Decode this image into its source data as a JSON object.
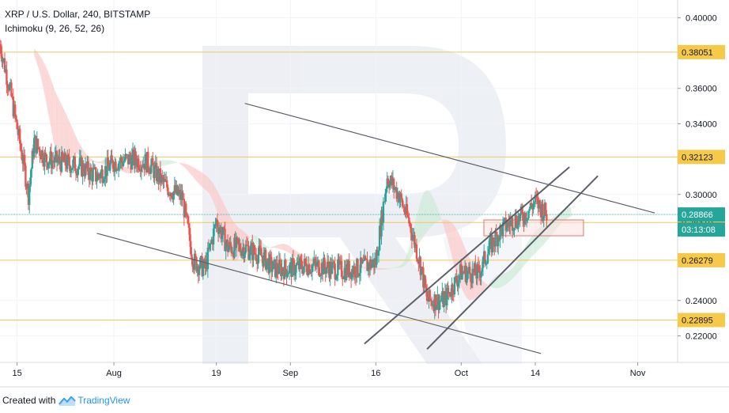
{
  "header": {
    "title": "XRP / U.S. Dollar, 240, BITSTAMP",
    "indicator": "Ichimoku (9, 26, 52, 26)"
  },
  "footer": {
    "created_with": "Created with",
    "brand": "TradingView"
  },
  "colors": {
    "up": "#26a69a",
    "down": "#ef5350",
    "hline": "#f0c75e",
    "current_line": "#4db6ac",
    "current_badge": "#26a69a",
    "countdown_badge": "#26a69a",
    "level_badge": "#f7c948",
    "trendline": "#5d606b",
    "watermark": "#dfe3ec",
    "kumo_bear": "#f9c9c9",
    "kumo_bull": "#cdebd8"
  },
  "chart_data": {
    "type": "candlestick",
    "symbol": "XRP / U.S. Dollar",
    "interval": "240",
    "exchange": "BITSTAMP",
    "indicator": "Ichimoku (9, 26, 52, 26)",
    "ylim": [
      0.205,
      0.41
    ],
    "y_ticks": [
      0.4,
      0.36,
      0.34,
      0.3,
      0.24,
      0.22
    ],
    "y_tick_labels": [
      "0.40000",
      "0.36000",
      "0.34000",
      "0.30000",
      "0.24000",
      "0.22000"
    ],
    "x_range": [
      "2019-07-12",
      "2019-11-08"
    ],
    "x_ticks": [
      {
        "date": "2019-07-15",
        "label": "15"
      },
      {
        "date": "2019-08-01",
        "label": "Aug"
      },
      {
        "date": "2019-08-19",
        "label": "19"
      },
      {
        "date": "2019-09-01",
        "label": "Sep"
      },
      {
        "date": "2019-09-16",
        "label": "16"
      },
      {
        "date": "2019-10-01",
        "label": "Oct"
      },
      {
        "date": "2019-10-14",
        "label": "14"
      },
      {
        "date": "2019-11-01",
        "label": "Nov"
      }
    ],
    "horizontal_levels": [
      {
        "value": 0.38051,
        "label": "0.38051"
      },
      {
        "value": 0.32123,
        "label": "0.32123"
      },
      {
        "value": 0.2841,
        "label": "0.28410"
      },
      {
        "value": 0.26279,
        "label": "0.26279"
      },
      {
        "value": 0.22895,
        "label": "0.22895"
      }
    ],
    "current_price": {
      "value": 0.28866,
      "label": "0.28866",
      "countdown": "03:13:08"
    },
    "close_path": [
      [
        "2019-07-12",
        0.385
      ],
      [
        "2019-07-14",
        0.355
      ],
      [
        "2019-07-16",
        0.32
      ],
      [
        "2019-07-17",
        0.3
      ],
      [
        "2019-07-18",
        0.33
      ],
      [
        "2019-07-20",
        0.32
      ],
      [
        "2019-07-23",
        0.318
      ],
      [
        "2019-07-26",
        0.316
      ],
      [
        "2019-07-29",
        0.31
      ],
      [
        "2019-08-01",
        0.318
      ],
      [
        "2019-08-04",
        0.32
      ],
      [
        "2019-08-07",
        0.318
      ],
      [
        "2019-08-10",
        0.305
      ],
      [
        "2019-08-13",
        0.298
      ],
      [
        "2019-08-15",
        0.262
      ],
      [
        "2019-08-17",
        0.258
      ],
      [
        "2019-08-19",
        0.285
      ],
      [
        "2019-08-21",
        0.27
      ],
      [
        "2019-08-24",
        0.27
      ],
      [
        "2019-08-27",
        0.265
      ],
      [
        "2019-08-29",
        0.258
      ],
      [
        "2019-09-01",
        0.258
      ],
      [
        "2019-09-04",
        0.26
      ],
      [
        "2019-09-07",
        0.259
      ],
      [
        "2019-09-10",
        0.257
      ],
      [
        "2019-09-13",
        0.258
      ],
      [
        "2019-09-16",
        0.262
      ],
      [
        "2019-09-18",
        0.31
      ],
      [
        "2019-09-20",
        0.3
      ],
      [
        "2019-09-22",
        0.283
      ],
      [
        "2019-09-24",
        0.258
      ],
      [
        "2019-09-25",
        0.24
      ],
      [
        "2019-09-28",
        0.24
      ],
      [
        "2019-10-01",
        0.256
      ],
      [
        "2019-10-04",
        0.255
      ],
      [
        "2019-10-06",
        0.27
      ],
      [
        "2019-10-08",
        0.28
      ],
      [
        "2019-10-10",
        0.285
      ],
      [
        "2019-10-12",
        0.288
      ],
      [
        "2019-10-14",
        0.296
      ],
      [
        "2019-10-16",
        0.2887
      ]
    ],
    "trendlines": [
      {
        "name": "channel-upper",
        "from": [
          "2019-08-24",
          0.3515
        ],
        "to": [
          "2019-11-04",
          0.2895
        ]
      },
      {
        "name": "channel-lower",
        "from": [
          "2019-07-29",
          0.278
        ],
        "to": [
          "2019-10-15",
          0.21
        ]
      },
      {
        "name": "rising-upper",
        "from": [
          "2019-09-14",
          0.2155
        ],
        "to": [
          "2019-10-20",
          0.3155
        ]
      },
      {
        "name": "rising-lower",
        "from": [
          "2019-09-25",
          0.2125
        ],
        "to": [
          "2019-10-25",
          0.3105
        ]
      }
    ]
  }
}
